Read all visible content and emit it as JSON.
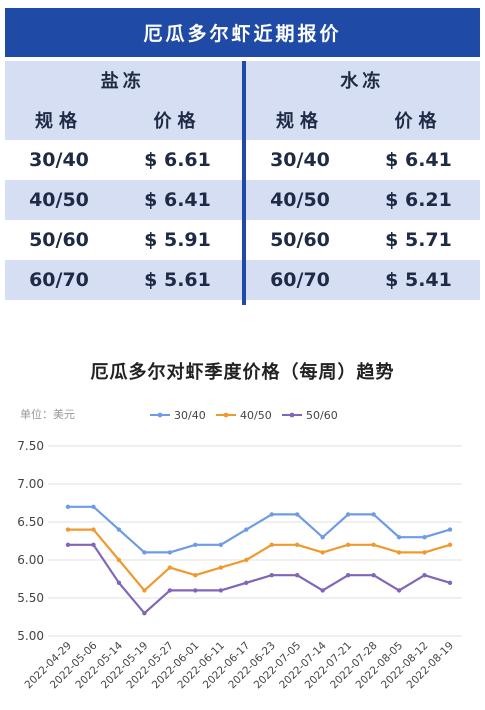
{
  "header": {
    "title": "厄瓜多尔虾近期报价"
  },
  "table": {
    "groups": [
      "盐冻",
      "水冻"
    ],
    "col_spec": "规格",
    "col_price": "价格",
    "rows": [
      {
        "spec": "30/40",
        "salt": "$ 6.61",
        "water_spec": "30/40",
        "water": "$ 6.41"
      },
      {
        "spec": "40/50",
        "salt": "$ 6.41",
        "water_spec": "40/50",
        "water": "$ 6.21"
      },
      {
        "spec": "50/60",
        "salt": "$ 5.91",
        "water_spec": "50/60",
        "water": "$ 5.71"
      },
      {
        "spec": "60/70",
        "salt": "$ 5.61",
        "water_spec": "60/70",
        "water": "$ 5.41"
      }
    ]
  },
  "colors": {
    "header_bg": "#1f4aa6",
    "row_alt": "#d5def2",
    "s1": "#6f9be6",
    "s2": "#ee9a2e",
    "s3": "#8066b8"
  },
  "chart_data": {
    "type": "line",
    "title": "厄瓜多尔对虾季度价格（每周）趋势",
    "unit_label": "单位：美元",
    "x": [
      "2022-04-29",
      "2022-05-06",
      "2022-05-14",
      "2022-05-19",
      "2022-05-27",
      "2022-06-01",
      "2022-06-11",
      "2022-06-17",
      "2022-06-23",
      "2022-07-05",
      "2022-07-14",
      "2022-07-21",
      "2022-07-28",
      "2022-08-05",
      "2022-08-12",
      "2022-08-19"
    ],
    "yticks": [
      "7.50",
      "7.00",
      "6.50",
      "6.00",
      "5.50",
      "5.00"
    ],
    "ylim": [
      5.0,
      7.5
    ],
    "legend_position": "top",
    "grid": true,
    "series": [
      {
        "name": "30/40",
        "values": [
          6.7,
          6.7,
          6.4,
          6.1,
          6.1,
          6.2,
          6.2,
          6.4,
          6.6,
          6.6,
          6.3,
          6.6,
          6.6,
          6.3,
          6.3,
          6.4
        ]
      },
      {
        "name": "40/50",
        "values": [
          6.4,
          6.4,
          6.0,
          5.6,
          5.9,
          5.8,
          5.9,
          6.0,
          6.2,
          6.2,
          6.1,
          6.2,
          6.2,
          6.1,
          6.1,
          6.2
        ]
      },
      {
        "name": "50/60",
        "values": [
          6.2,
          6.2,
          5.7,
          5.3,
          5.6,
          5.6,
          5.6,
          5.7,
          5.8,
          5.8,
          5.6,
          5.8,
          5.8,
          5.6,
          5.8,
          5.7
        ]
      }
    ]
  }
}
